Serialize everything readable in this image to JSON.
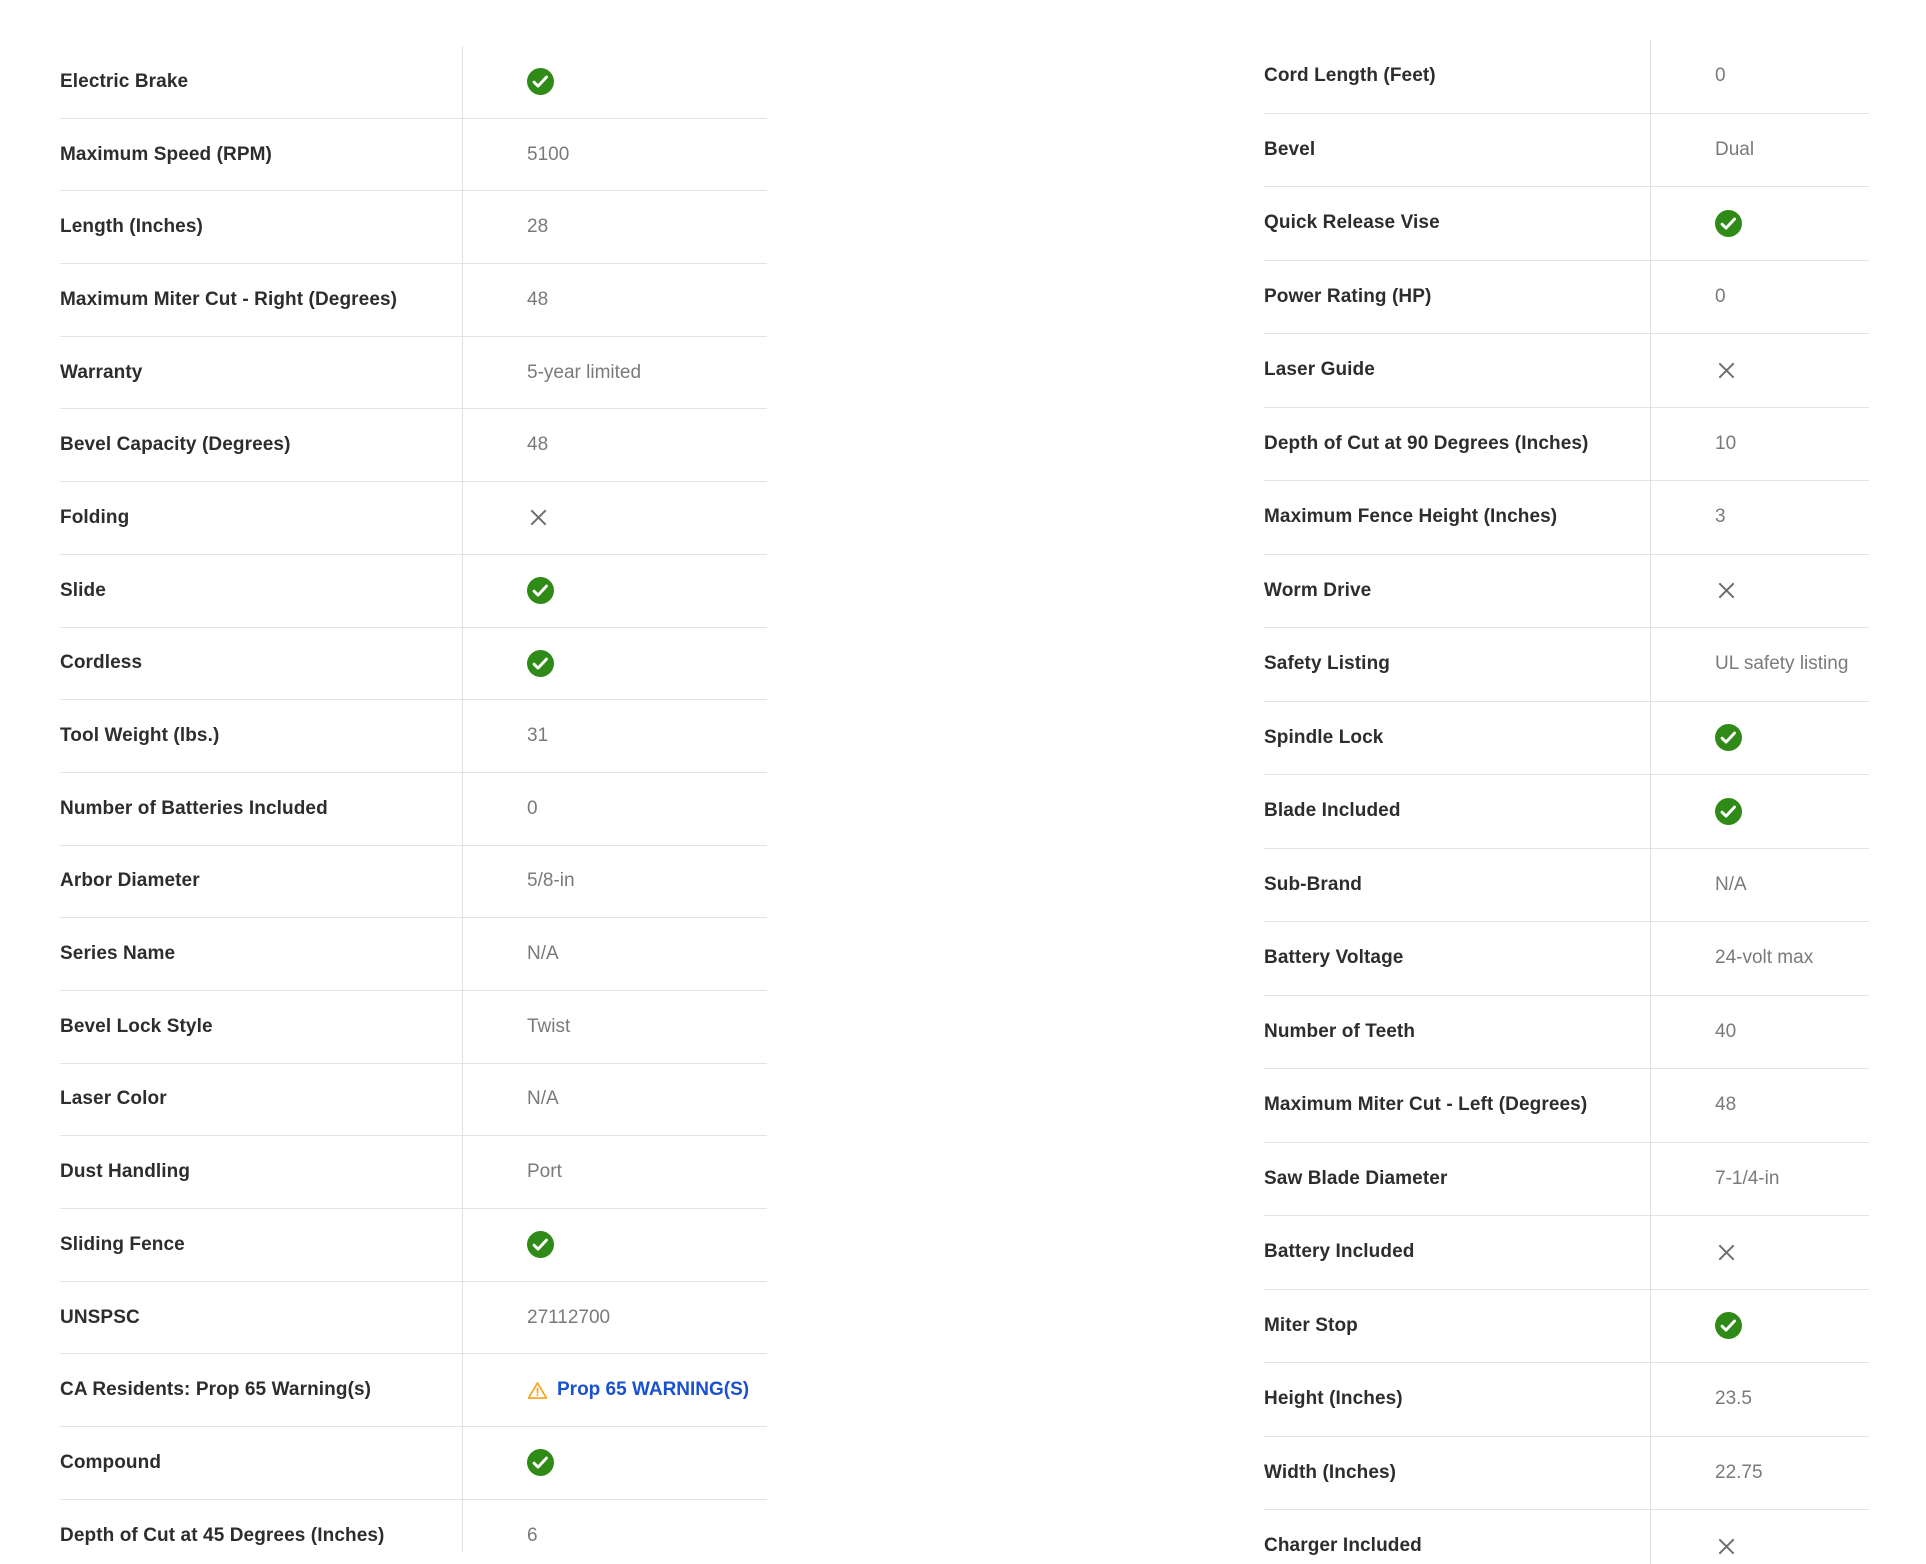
{
  "page": {
    "background": "#ffffff"
  },
  "colors": {
    "label_text": "#2d2d2d",
    "value_text": "#7a7a7a",
    "row_border": "#e4e4e4",
    "column_divider": "#e0e0e0",
    "check_green": "#2f8a17",
    "check_mark_white": "#ffffff",
    "cross_gray": "#6e6e6e",
    "link_blue": "#1a51cf",
    "warning_amber": "#f5a623"
  },
  "icons": {
    "check": "check-icon",
    "cross": "cross-icon",
    "warning": "warning-triangle-icon"
  },
  "left_table": {
    "rows": [
      {
        "label": "Electric Brake",
        "icon": "check"
      },
      {
        "label": "Maximum Speed (RPM)",
        "value": "5100"
      },
      {
        "label": "Length (Inches)",
        "value": "28"
      },
      {
        "label": "Maximum Miter Cut - Right (Degrees)",
        "value": "48"
      },
      {
        "label": "Warranty",
        "value": "5-year limited"
      },
      {
        "label": "Bevel Capacity (Degrees)",
        "value": "48"
      },
      {
        "label": "Folding",
        "icon": "cross"
      },
      {
        "label": "Slide",
        "icon": "check"
      },
      {
        "label": "Cordless",
        "icon": "check"
      },
      {
        "label": "Tool Weight (lbs.)",
        "value": "31"
      },
      {
        "label": "Number of Batteries Included",
        "value": "0"
      },
      {
        "label": "Arbor Diameter",
        "value": "5/8-in"
      },
      {
        "label": "Series Name",
        "value": "N/A"
      },
      {
        "label": "Bevel Lock Style",
        "value": "Twist"
      },
      {
        "label": "Laser Color",
        "value": "N/A"
      },
      {
        "label": "Dust Handling",
        "value": "Port"
      },
      {
        "label": "Sliding Fence",
        "icon": "check"
      },
      {
        "label": "UNSPSC",
        "value": "27112700"
      },
      {
        "label": "CA Residents: Prop 65 Warning(s)",
        "value": "Prop 65 WARNING(S)",
        "link": true,
        "icon": "warning"
      },
      {
        "label": "Compound",
        "icon": "check"
      },
      {
        "label": "Depth of Cut at 45 Degrees (Inches)",
        "value": "6"
      }
    ]
  },
  "right_table": {
    "rows": [
      {
        "label": "Cord Length (Feet)",
        "value": "0"
      },
      {
        "label": "Bevel",
        "value": "Dual"
      },
      {
        "label": "Quick Release Vise",
        "icon": "check"
      },
      {
        "label": "Power Rating (HP)",
        "value": "0"
      },
      {
        "label": "Laser Guide",
        "icon": "cross"
      },
      {
        "label": "Depth of Cut at 90 Degrees (Inches)",
        "value": "10"
      },
      {
        "label": "Maximum Fence Height (Inches)",
        "value": "3"
      },
      {
        "label": "Worm Drive",
        "icon": "cross"
      },
      {
        "label": "Safety Listing",
        "value": "UL safety listing"
      },
      {
        "label": "Spindle Lock",
        "icon": "check"
      },
      {
        "label": "Blade Included",
        "icon": "check"
      },
      {
        "label": "Sub-Brand",
        "value": "N/A"
      },
      {
        "label": "Battery Voltage",
        "value": "24-volt max"
      },
      {
        "label": "Number of Teeth",
        "value": "40"
      },
      {
        "label": "Maximum Miter Cut - Left (Degrees)",
        "value": "48"
      },
      {
        "label": "Saw Blade Diameter",
        "value": "7-1/4-in"
      },
      {
        "label": "Battery Included",
        "icon": "cross"
      },
      {
        "label": "Miter Stop",
        "icon": "check"
      },
      {
        "label": "Height (Inches)",
        "value": "23.5"
      },
      {
        "label": "Width (Inches)",
        "value": "22.75"
      },
      {
        "label": "Charger Included",
        "icon": "cross"
      }
    ]
  }
}
